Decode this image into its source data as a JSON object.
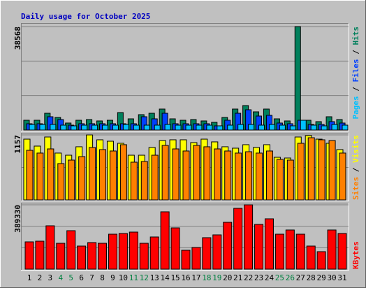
{
  "chart_data": [
    {
      "type": "bar",
      "title": "Daily usage for October 2025",
      "ylim": [
        0,
        38568
      ],
      "yticks": [
        38568
      ],
      "grid_divisions": 3,
      "legend_separator": "/",
      "series": [
        {
          "name": "Hits",
          "color": "#00805c",
          "values": [
            3648,
            3648,
            6254,
            4691,
            2606,
            3648,
            3909,
            3388,
            3648,
            6515,
            4170,
            5733,
            6254,
            7818,
            4170,
            3648,
            3909,
            3388,
            2867,
            4691,
            7818,
            9121,
            6776,
            7818,
            4170,
            3388,
            38568,
            3648,
            3127,
            4951,
            3909
          ]
        },
        {
          "name": "Files",
          "color": "#0040ff",
          "values": [
            2345,
            2345,
            4951,
            3909,
            1824,
            2345,
            2345,
            2345,
            2345,
            2345,
            2345,
            4951,
            4170,
            6254,
            2345,
            2345,
            2345,
            2345,
            1564,
            3648,
            6254,
            7557,
            5212,
            5473,
            2606,
            2345,
            3648,
            2085,
            2085,
            3127,
            2606
          ]
        },
        {
          "name": "Pages",
          "color": "#00c0ff",
          "values": [
            2085,
            2085,
            2085,
            1824,
            1564,
            1824,
            1824,
            1824,
            1824,
            2085,
            1824,
            1824,
            1824,
            2085,
            1824,
            1824,
            1824,
            1824,
            1564,
            1824,
            2085,
            2085,
            1824,
            2085,
            1824,
            1564,
            3648,
            1824,
            1564,
            2085,
            1824
          ]
        }
      ]
    },
    {
      "type": "bar",
      "ylim": [
        0,
        1157
      ],
      "yticks": [
        1157
      ],
      "grid_divisions": 2,
      "legend_separator": "/",
      "series": [
        {
          "name": "Visits",
          "color": "#ffff00",
          "values": [
            1082,
            958,
            1120,
            834,
            796,
            946,
            1157,
            1070,
            1045,
            1008,
            796,
            796,
            933,
            1057,
            1070,
            1070,
            1020,
            1082,
            1033,
            946,
            921,
            983,
            933,
            983,
            759,
            746,
            1120,
            1145,
            1082,
            1008,
            896
          ]
        },
        {
          "name": "Sites",
          "color": "#ff8000",
          "values": [
            883,
            834,
            908,
            647,
            709,
            771,
            933,
            896,
            871,
            983,
            672,
            684,
            796,
            970,
            908,
            871,
            970,
            946,
            908,
            871,
            834,
            858,
            834,
            871,
            722,
            709,
            1008,
            1107,
            1070,
            1057,
            834
          ]
        }
      ]
    },
    {
      "type": "bar",
      "ylim": [
        0,
        389330
      ],
      "yticks": [
        389330
      ],
      "grid_divisions": 3,
      "categories": [
        "1",
        "2",
        "3",
        "4",
        "5",
        "6",
        "7",
        "8",
        "9",
        "10",
        "11",
        "12",
        "13",
        "14",
        "15",
        "16",
        "17",
        "18",
        "19",
        "20",
        "21",
        "22",
        "23",
        "24",
        "25",
        "26",
        "27",
        "28",
        "29",
        "30",
        "31"
      ],
      "label_colors": [
        "#000000",
        "#000000",
        "#000000",
        "#008040",
        "#008040",
        "#000000",
        "#000000",
        "#000000",
        "#000000",
        "#000000",
        "#008040",
        "#008040",
        "#000000",
        "#000000",
        "#000000",
        "#000000",
        "#000000",
        "#008040",
        "#008040",
        "#000000",
        "#000000",
        "#000000",
        "#000000",
        "#000000",
        "#008040",
        "#008040",
        "#000000",
        "#000000",
        "#000000",
        "#000000",
        "#000000"
      ],
      "series": [
        {
          "name": "KBytes",
          "color": "#ff0000",
          "values": [
            165038,
            169280,
            262380,
            156580,
            232750,
            139650,
            160810,
            156580,
            211590,
            215820,
            224290,
            156580,
            194660,
            347010,
            249680,
            114260,
            131190,
            190430,
            207360,
            283530,
            368170,
            389330,
            270840,
            304690,
            211590,
            236980,
            211590,
            139650,
            105800,
            236980,
            215820
          ]
        }
      ]
    }
  ]
}
